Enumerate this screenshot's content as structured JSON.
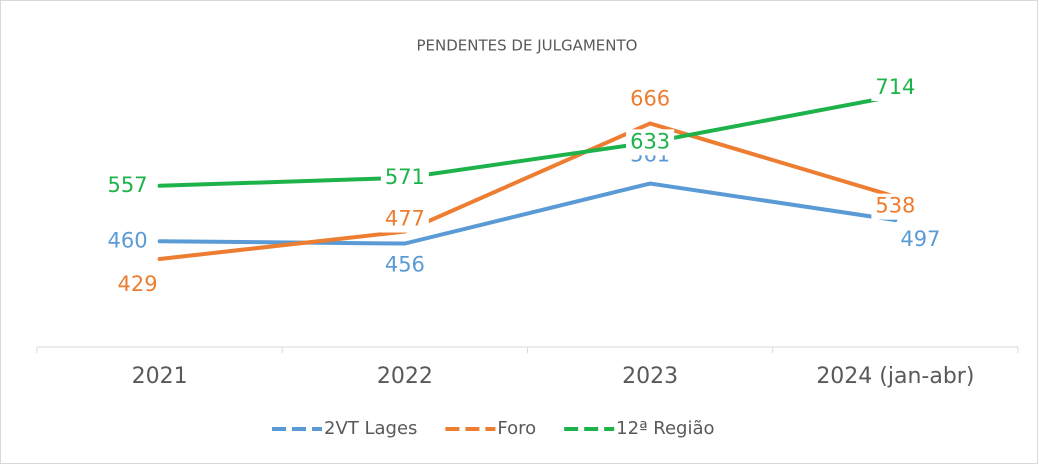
{
  "chart_data": {
    "type": "line",
    "title": "PENDENTES DE JULGAMENTO",
    "categories": [
      "2021",
      "2022",
      "2023",
      "2024 (jan-abr)"
    ],
    "series": [
      {
        "name": "2VT Lages",
        "color": "#5b9bd5",
        "values": [
          460,
          456,
          561,
          497
        ]
      },
      {
        "name": "Foro",
        "color": "#ed7d31",
        "values": [
          429,
          477,
          666,
          538
        ]
      },
      {
        "name": "12ª Região",
        "color": "#1db34a",
        "values": [
          557,
          571,
          633,
          714
        ]
      }
    ],
    "legend": "bottom"
  }
}
